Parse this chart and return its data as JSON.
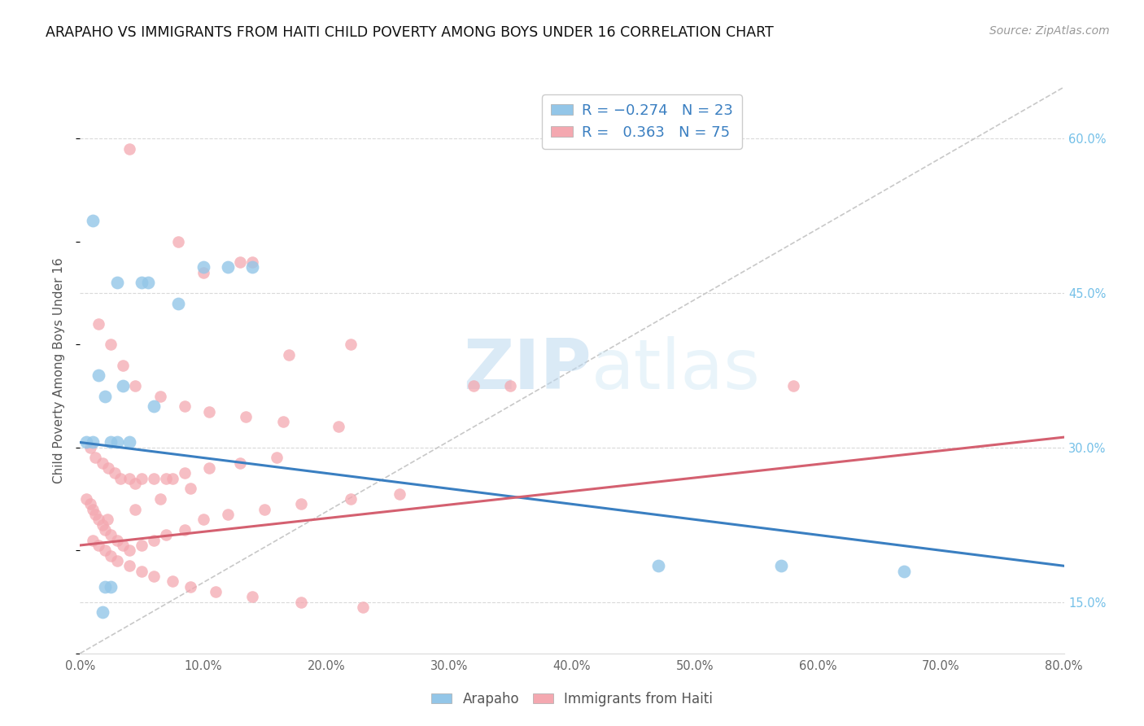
{
  "title": "ARAPAHO VS IMMIGRANTS FROM HAITI CHILD POVERTY AMONG BOYS UNDER 16 CORRELATION CHART",
  "source": "Source: ZipAtlas.com",
  "ylabel": "Child Poverty Among Boys Under 16",
  "xlabel_ticks": [
    "0.0%",
    "10.0%",
    "20.0%",
    "30.0%",
    "40.0%",
    "50.0%",
    "60.0%",
    "70.0%",
    "80.0%"
  ],
  "xlabel_vals": [
    0,
    10,
    20,
    30,
    40,
    50,
    60,
    70,
    80
  ],
  "ylabel_ticks": [
    "15.0%",
    "30.0%",
    "45.0%",
    "60.0%"
  ],
  "ylabel_vals": [
    15,
    30,
    45,
    60
  ],
  "xmin": 0,
  "xmax": 80,
  "ymin": 10,
  "ymax": 65,
  "blue_line_start_y": 30.5,
  "blue_line_end_y": 18.5,
  "pink_line_start_y": 20.5,
  "pink_line_end_y": 31.0,
  "watermark_zip": "ZIP",
  "watermark_atlas": "atlas",
  "blue_scatter_color": "#93C6E8",
  "pink_scatter_color": "#F4A8B0",
  "blue_line_color": "#3A7FC1",
  "pink_line_color": "#D46070",
  "ref_line_color": "#C8C8C8",
  "grid_color": "#DADADA",
  "right_axis_color": "#74C0E8",
  "arapaho_x": [
    1.0,
    3.0,
    5.0,
    5.5,
    8.0,
    10.0,
    12.0,
    14.0,
    1.5,
    2.0,
    3.5,
    6.0,
    47.0,
    57.0,
    67.0,
    2.5,
    3.0,
    4.0,
    0.5,
    1.0,
    2.0,
    2.5,
    1.8
  ],
  "arapaho_y": [
    52.0,
    46.0,
    46.0,
    46.0,
    44.0,
    47.5,
    47.5,
    47.5,
    37.0,
    35.0,
    36.0,
    34.0,
    18.5,
    18.5,
    18.0,
    30.5,
    30.5,
    30.5,
    30.5,
    30.5,
    16.5,
    16.5,
    14.0
  ],
  "haiti_x": [
    4.0,
    8.0,
    10.0,
    13.0,
    14.0,
    17.0,
    22.0,
    32.0,
    35.0,
    1.5,
    2.5,
    3.5,
    4.5,
    6.5,
    8.5,
    10.5,
    13.5,
    16.5,
    21.0,
    0.8,
    1.2,
    1.8,
    2.3,
    2.8,
    3.3,
    4.0,
    5.0,
    6.0,
    7.0,
    8.5,
    10.5,
    13.0,
    16.0,
    0.5,
    0.8,
    1.0,
    1.2,
    1.5,
    1.8,
    2.0,
    2.5,
    3.0,
    3.5,
    4.0,
    5.0,
    6.0,
    7.0,
    8.5,
    10.0,
    12.0,
    15.0,
    18.0,
    22.0,
    26.0,
    1.0,
    1.5,
    2.0,
    2.5,
    3.0,
    4.0,
    5.0,
    6.0,
    7.5,
    9.0,
    11.0,
    14.0,
    18.0,
    23.0,
    58.0,
    4.5,
    7.5,
    2.2,
    4.5,
    6.5,
    9.0
  ],
  "haiti_y": [
    59.0,
    50.0,
    47.0,
    48.0,
    48.0,
    39.0,
    40.0,
    36.0,
    36.0,
    42.0,
    40.0,
    38.0,
    36.0,
    35.0,
    34.0,
    33.5,
    33.0,
    32.5,
    32.0,
    30.0,
    29.0,
    28.5,
    28.0,
    27.5,
    27.0,
    27.0,
    27.0,
    27.0,
    27.0,
    27.5,
    28.0,
    28.5,
    29.0,
    25.0,
    24.5,
    24.0,
    23.5,
    23.0,
    22.5,
    22.0,
    21.5,
    21.0,
    20.5,
    20.0,
    20.5,
    21.0,
    21.5,
    22.0,
    23.0,
    23.5,
    24.0,
    24.5,
    25.0,
    25.5,
    21.0,
    20.5,
    20.0,
    19.5,
    19.0,
    18.5,
    18.0,
    17.5,
    17.0,
    16.5,
    16.0,
    15.5,
    15.0,
    14.5,
    36.0,
    26.5,
    27.0,
    23.0,
    24.0,
    25.0,
    26.0
  ]
}
